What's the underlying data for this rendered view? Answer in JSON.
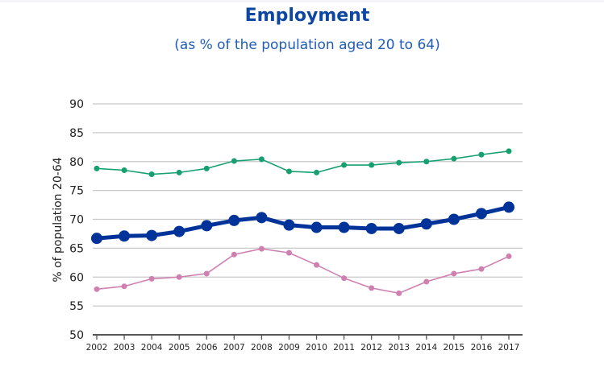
{
  "chart_data": {
    "type": "line",
    "title": "Employment",
    "subtitle": "(as % of the population aged 20 to 64)",
    "xlabel": "",
    "ylabel": "% of population 20-64",
    "ylim": [
      50,
      90
    ],
    "yticks": [
      "50",
      "55",
      "60",
      "65",
      "70",
      "75",
      "80",
      "85",
      "90"
    ],
    "categories": [
      "2002",
      "2003",
      "2004",
      "2005",
      "2006",
      "2007",
      "2008",
      "2009",
      "2010",
      "2011",
      "2012",
      "2013",
      "2014",
      "2015",
      "2016",
      "2017"
    ],
    "grid": true,
    "series": [
      {
        "name": "series-green",
        "color": "#16a070",
        "values": [
          78.8,
          78.5,
          77.8,
          78.1,
          78.8,
          80.1,
          80.4,
          78.3,
          78.1,
          79.4,
          79.4,
          79.8,
          80.0,
          80.5,
          81.2,
          81.8
        ]
      },
      {
        "name": "series-blue",
        "color": "#003399",
        "values": [
          66.7,
          67.1,
          67.2,
          67.9,
          68.9,
          69.8,
          70.3,
          69.0,
          68.6,
          68.6,
          68.4,
          68.4,
          69.2,
          70.0,
          71.0,
          72.1
        ]
      },
      {
        "name": "series-pink",
        "color": "#d080b0",
        "values": [
          57.9,
          58.4,
          59.7,
          60.0,
          60.6,
          63.9,
          64.9,
          64.2,
          62.1,
          59.8,
          58.1,
          57.2,
          59.2,
          60.6,
          61.4,
          63.6
        ]
      }
    ]
  }
}
